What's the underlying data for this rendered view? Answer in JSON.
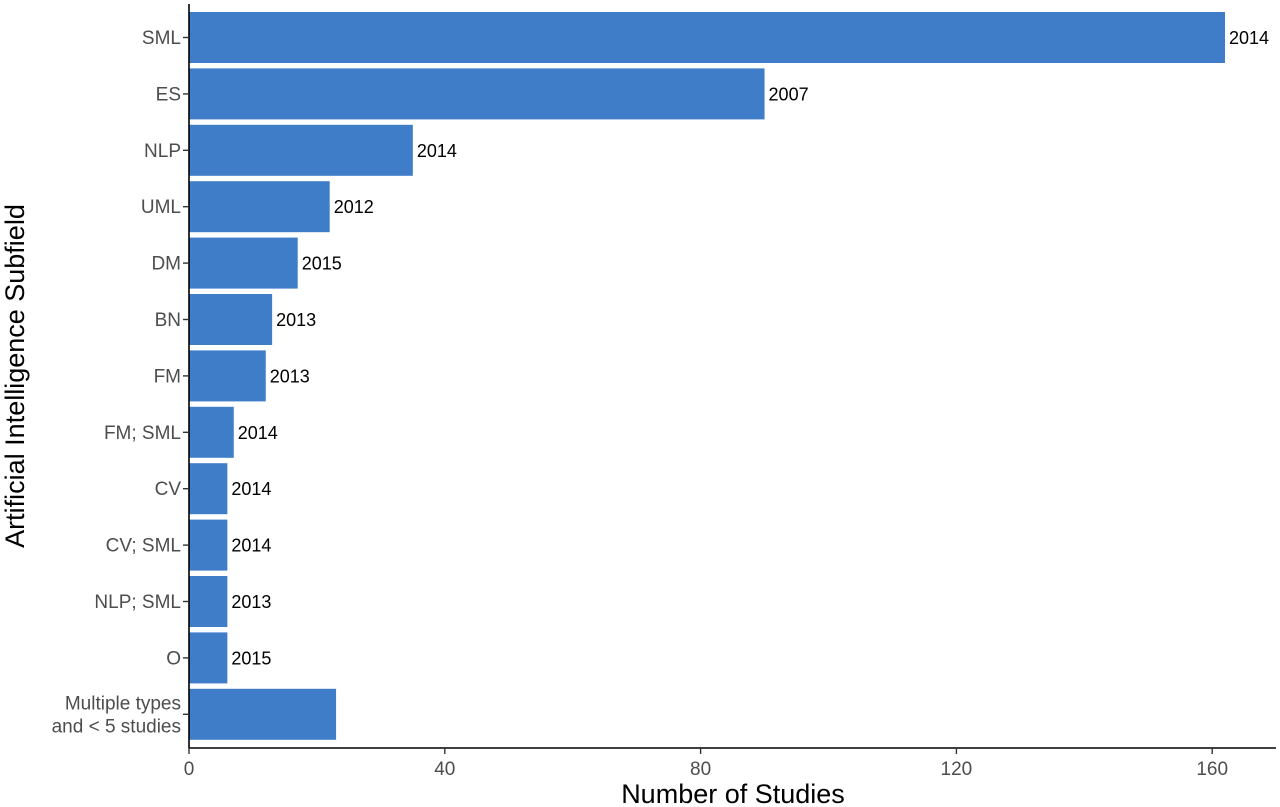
{
  "chart_data": {
    "type": "bar",
    "orientation": "horizontal",
    "xlabel": "Number of Studies",
    "ylabel": "Artificial Intelligence Subfield",
    "xlim": [
      0,
      170
    ],
    "xticks": [
      0,
      40,
      80,
      120,
      160
    ],
    "grid": false,
    "bar_color": "#3f7dc9",
    "categories": [
      "SML",
      "ES",
      "NLP",
      "UML",
      "DM",
      "BN",
      "FM",
      "FM; SML",
      "CV",
      "CV; SML",
      "NLP; SML",
      "O",
      "Multiple types\nand < 5 studies"
    ],
    "values": [
      162,
      90,
      35,
      22,
      17,
      13,
      12,
      7,
      6,
      6,
      6,
      6,
      23
    ],
    "bar_labels": [
      "2014",
      "2007",
      "2014",
      "2012",
      "2015",
      "2013",
      "2013",
      "2014",
      "2014",
      "2014",
      "2013",
      "2015",
      ""
    ]
  }
}
